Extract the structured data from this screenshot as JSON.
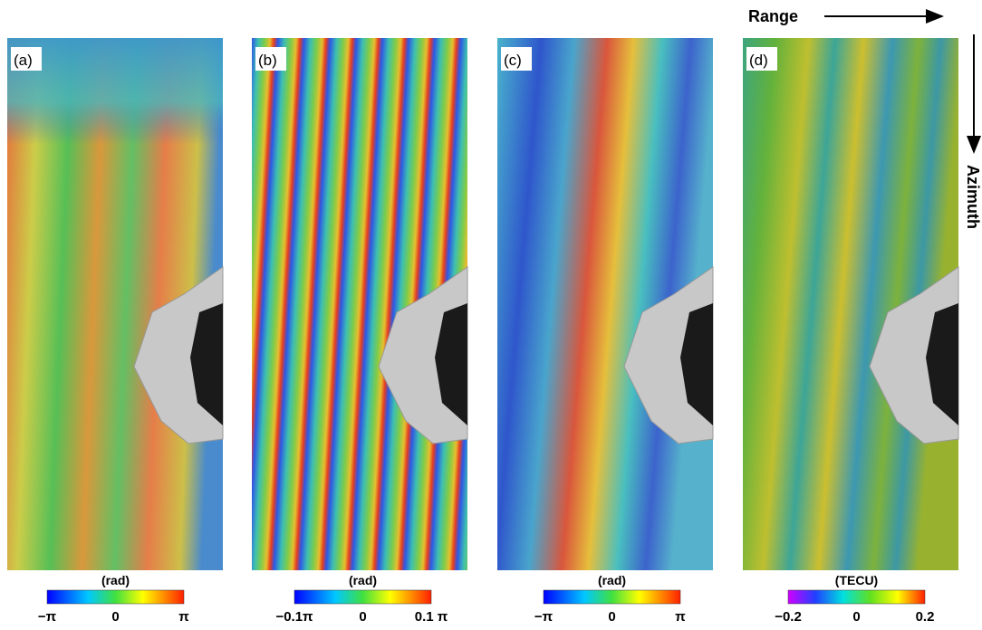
{
  "header": {
    "range": "Range",
    "azimuth": "Azimuth"
  },
  "panels": [
    {
      "label": "(a)",
      "unit": "(rad)",
      "ticks": [
        "−π",
        "0",
        "π"
      ]
    },
    {
      "label": "(b)",
      "unit": "(rad)",
      "ticks": [
        "−0.1π",
        "0",
        "0.1 π"
      ]
    },
    {
      "label": "(c)",
      "unit": "(rad)",
      "ticks": [
        "−π",
        "0",
        "π"
      ]
    },
    {
      "label": "(d)",
      "unit": "(TECU)",
      "ticks": [
        "−0.2",
        "0",
        "0.2"
      ]
    }
  ]
}
